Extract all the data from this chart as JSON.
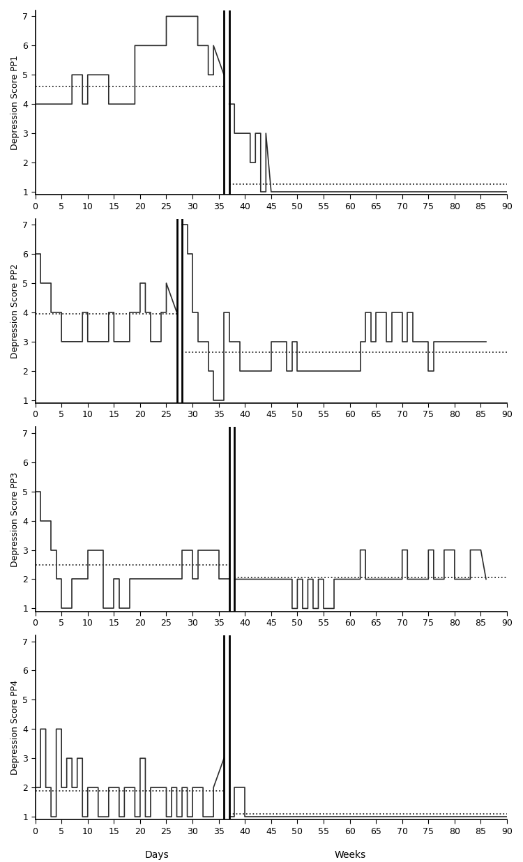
{
  "pp1": {
    "ylabel": "Depression Score PP1",
    "baseline_x": [
      0,
      2,
      2,
      7,
      7,
      9,
      9,
      10,
      10,
      14,
      14,
      19,
      19,
      20,
      20,
      22,
      22,
      25,
      25,
      30,
      30,
      31,
      31,
      33,
      33,
      34,
      34,
      36
    ],
    "baseline_y": [
      4,
      4,
      4,
      4,
      5,
      5,
      4,
      4,
      5,
      5,
      4,
      4,
      6,
      6,
      6,
      6,
      6,
      6,
      7,
      7,
      7,
      7,
      6,
      6,
      5,
      5,
      6,
      5
    ],
    "treatment_x": [
      37,
      38,
      38,
      39,
      39,
      40,
      40,
      41,
      41,
      42,
      42,
      43,
      43,
      44,
      44,
      45,
      90
    ],
    "treatment_y": [
      4,
      4,
      3,
      3,
      3,
      3,
      3,
      3,
      2,
      2,
      3,
      3,
      1,
      1,
      3,
      1,
      1
    ],
    "baseline_mean": 4.6,
    "treatment_mean": 1.27,
    "vline_x1": 36,
    "vline_x2": 37,
    "xlim": [
      0,
      90
    ],
    "ylim": [
      1,
      7
    ]
  },
  "pp2": {
    "ylabel": "Depression Score PP2",
    "baseline_x": [
      0,
      1,
      1,
      3,
      3,
      5,
      5,
      6,
      6,
      9,
      9,
      10,
      10,
      13,
      13,
      14,
      14,
      15,
      15,
      16,
      16,
      17,
      17,
      18,
      18,
      20,
      20,
      21,
      21,
      22,
      22,
      23,
      23,
      24,
      24,
      25,
      25,
      27
    ],
    "baseline_y": [
      6,
      6,
      5,
      5,
      4,
      4,
      3,
      3,
      3,
      3,
      4,
      4,
      3,
      3,
      3,
      3,
      4,
      4,
      3,
      3,
      3,
      3,
      3,
      3,
      4,
      4,
      5,
      5,
      4,
      4,
      3,
      3,
      3,
      3,
      4,
      4,
      5,
      4
    ],
    "treatment_x": [
      28,
      29,
      29,
      30,
      30,
      31,
      31,
      32,
      32,
      33,
      33,
      34,
      34,
      35,
      35,
      36,
      36,
      37,
      37,
      38,
      38,
      39,
      39,
      40,
      40,
      45,
      45,
      48,
      48,
      49,
      49,
      50,
      50,
      56,
      56,
      62,
      62,
      63,
      63,
      64,
      64,
      65,
      65,
      67,
      67,
      68,
      68,
      70,
      70,
      71,
      71,
      72,
      72,
      73,
      73,
      75,
      75,
      76,
      76,
      77,
      77,
      86
    ],
    "treatment_y": [
      7,
      7,
      6,
      6,
      4,
      4,
      3,
      3,
      3,
      3,
      2,
      2,
      1,
      1,
      1,
      1,
      4,
      4,
      3,
      3,
      3,
      3,
      2,
      2,
      2,
      2,
      3,
      3,
      2,
      2,
      3,
      3,
      2,
      2,
      2,
      2,
      3,
      3,
      4,
      4,
      3,
      3,
      4,
      4,
      3,
      3,
      4,
      4,
      3,
      3,
      4,
      4,
      3,
      3,
      3,
      3,
      2,
      2,
      3,
      3,
      3,
      3
    ],
    "baseline_mean": 3.96,
    "treatment_mean": 2.65,
    "vline_x1": 27,
    "vline_x2": 28,
    "xlim": [
      0,
      90
    ],
    "ylim": [
      1,
      7
    ]
  },
  "pp3": {
    "ylabel": "Depression Score PP3",
    "baseline_x": [
      0,
      1,
      1,
      3,
      3,
      4,
      4,
      5,
      5,
      7,
      7,
      10,
      10,
      13,
      13,
      15,
      15,
      16,
      16,
      18,
      18,
      20,
      20,
      24,
      24,
      26,
      26,
      28,
      28,
      30,
      30,
      31,
      31,
      33,
      33,
      35,
      35,
      37
    ],
    "baseline_y": [
      5,
      5,
      4,
      4,
      3,
      3,
      2,
      2,
      1,
      1,
      2,
      2,
      3,
      3,
      1,
      1,
      2,
      2,
      1,
      1,
      2,
      2,
      2,
      2,
      2,
      2,
      2,
      2,
      3,
      3,
      2,
      2,
      3,
      3,
      3,
      3,
      2,
      2
    ],
    "treatment_x": [
      38,
      39,
      39,
      42,
      42,
      49,
      49,
      50,
      50,
      51,
      51,
      52,
      52,
      53,
      53,
      54,
      54,
      55,
      55,
      57,
      57,
      58,
      58,
      59,
      59,
      62,
      62,
      63,
      63,
      65,
      65,
      70,
      70,
      71,
      71,
      72,
      72,
      75,
      75,
      76,
      76,
      78,
      78,
      80,
      80,
      83,
      83,
      85,
      85,
      86
    ],
    "treatment_y": [
      2,
      2,
      2,
      2,
      2,
      2,
      1,
      1,
      2,
      2,
      1,
      1,
      2,
      2,
      1,
      1,
      2,
      2,
      1,
      1,
      2,
      2,
      2,
      2,
      2,
      2,
      3,
      3,
      2,
      2,
      2,
      2,
      3,
      3,
      2,
      2,
      2,
      2,
      3,
      3,
      2,
      2,
      3,
      3,
      2,
      2,
      3,
      3,
      3,
      2
    ],
    "baseline_mean": 2.5,
    "treatment_mean": 2.05,
    "vline_x1": 37,
    "vline_x2": 38,
    "xlim": [
      0,
      90
    ],
    "ylim": [
      1,
      7
    ]
  },
  "pp4": {
    "ylabel": "Depression Score PP4",
    "baseline_x": [
      0,
      1,
      1,
      2,
      2,
      3,
      3,
      4,
      4,
      5,
      5,
      6,
      6,
      7,
      7,
      8,
      8,
      9,
      9,
      10,
      10,
      11,
      11,
      12,
      12,
      14,
      14,
      16,
      16,
      17,
      17,
      18,
      18,
      19,
      19,
      20,
      20,
      21,
      21,
      22,
      22,
      24,
      24,
      25,
      25,
      26,
      26,
      27,
      27,
      28,
      28,
      29,
      29,
      30,
      30,
      32,
      32,
      34,
      34,
      36
    ],
    "baseline_y": [
      2,
      2,
      4,
      4,
      2,
      2,
      1,
      1,
      4,
      4,
      2,
      2,
      3,
      3,
      2,
      2,
      3,
      3,
      1,
      1,
      2,
      2,
      2,
      2,
      1,
      1,
      2,
      2,
      1,
      1,
      2,
      2,
      2,
      2,
      1,
      1,
      3,
      3,
      1,
      1,
      2,
      2,
      2,
      2,
      1,
      1,
      2,
      2,
      1,
      1,
      2,
      2,
      1,
      1,
      2,
      2,
      1,
      1,
      2,
      3
    ],
    "treatment_x": [
      37,
      38,
      38,
      39,
      39,
      40,
      40,
      90
    ],
    "treatment_y": [
      1,
      1,
      2,
      2,
      2,
      2,
      1,
      1
    ],
    "baseline_mean": 1.88,
    "treatment_mean": 1.1,
    "vline_x1": 36,
    "vline_x2": 37,
    "xlim": [
      0,
      90
    ],
    "ylim": [
      1,
      7
    ]
  },
  "xlabel_left": "Days",
  "xlabel_right": "Weeks",
  "line_color": "#2b2b2b",
  "vline_color": "#000000",
  "mean_line_color": "#2b2b2b",
  "yticks": [
    1,
    2,
    3,
    4,
    5,
    6,
    7
  ],
  "xticks": [
    0,
    5,
    10,
    15,
    20,
    25,
    30,
    35,
    40,
    45,
    50,
    55,
    60,
    65,
    70,
    75,
    80,
    85,
    90
  ]
}
